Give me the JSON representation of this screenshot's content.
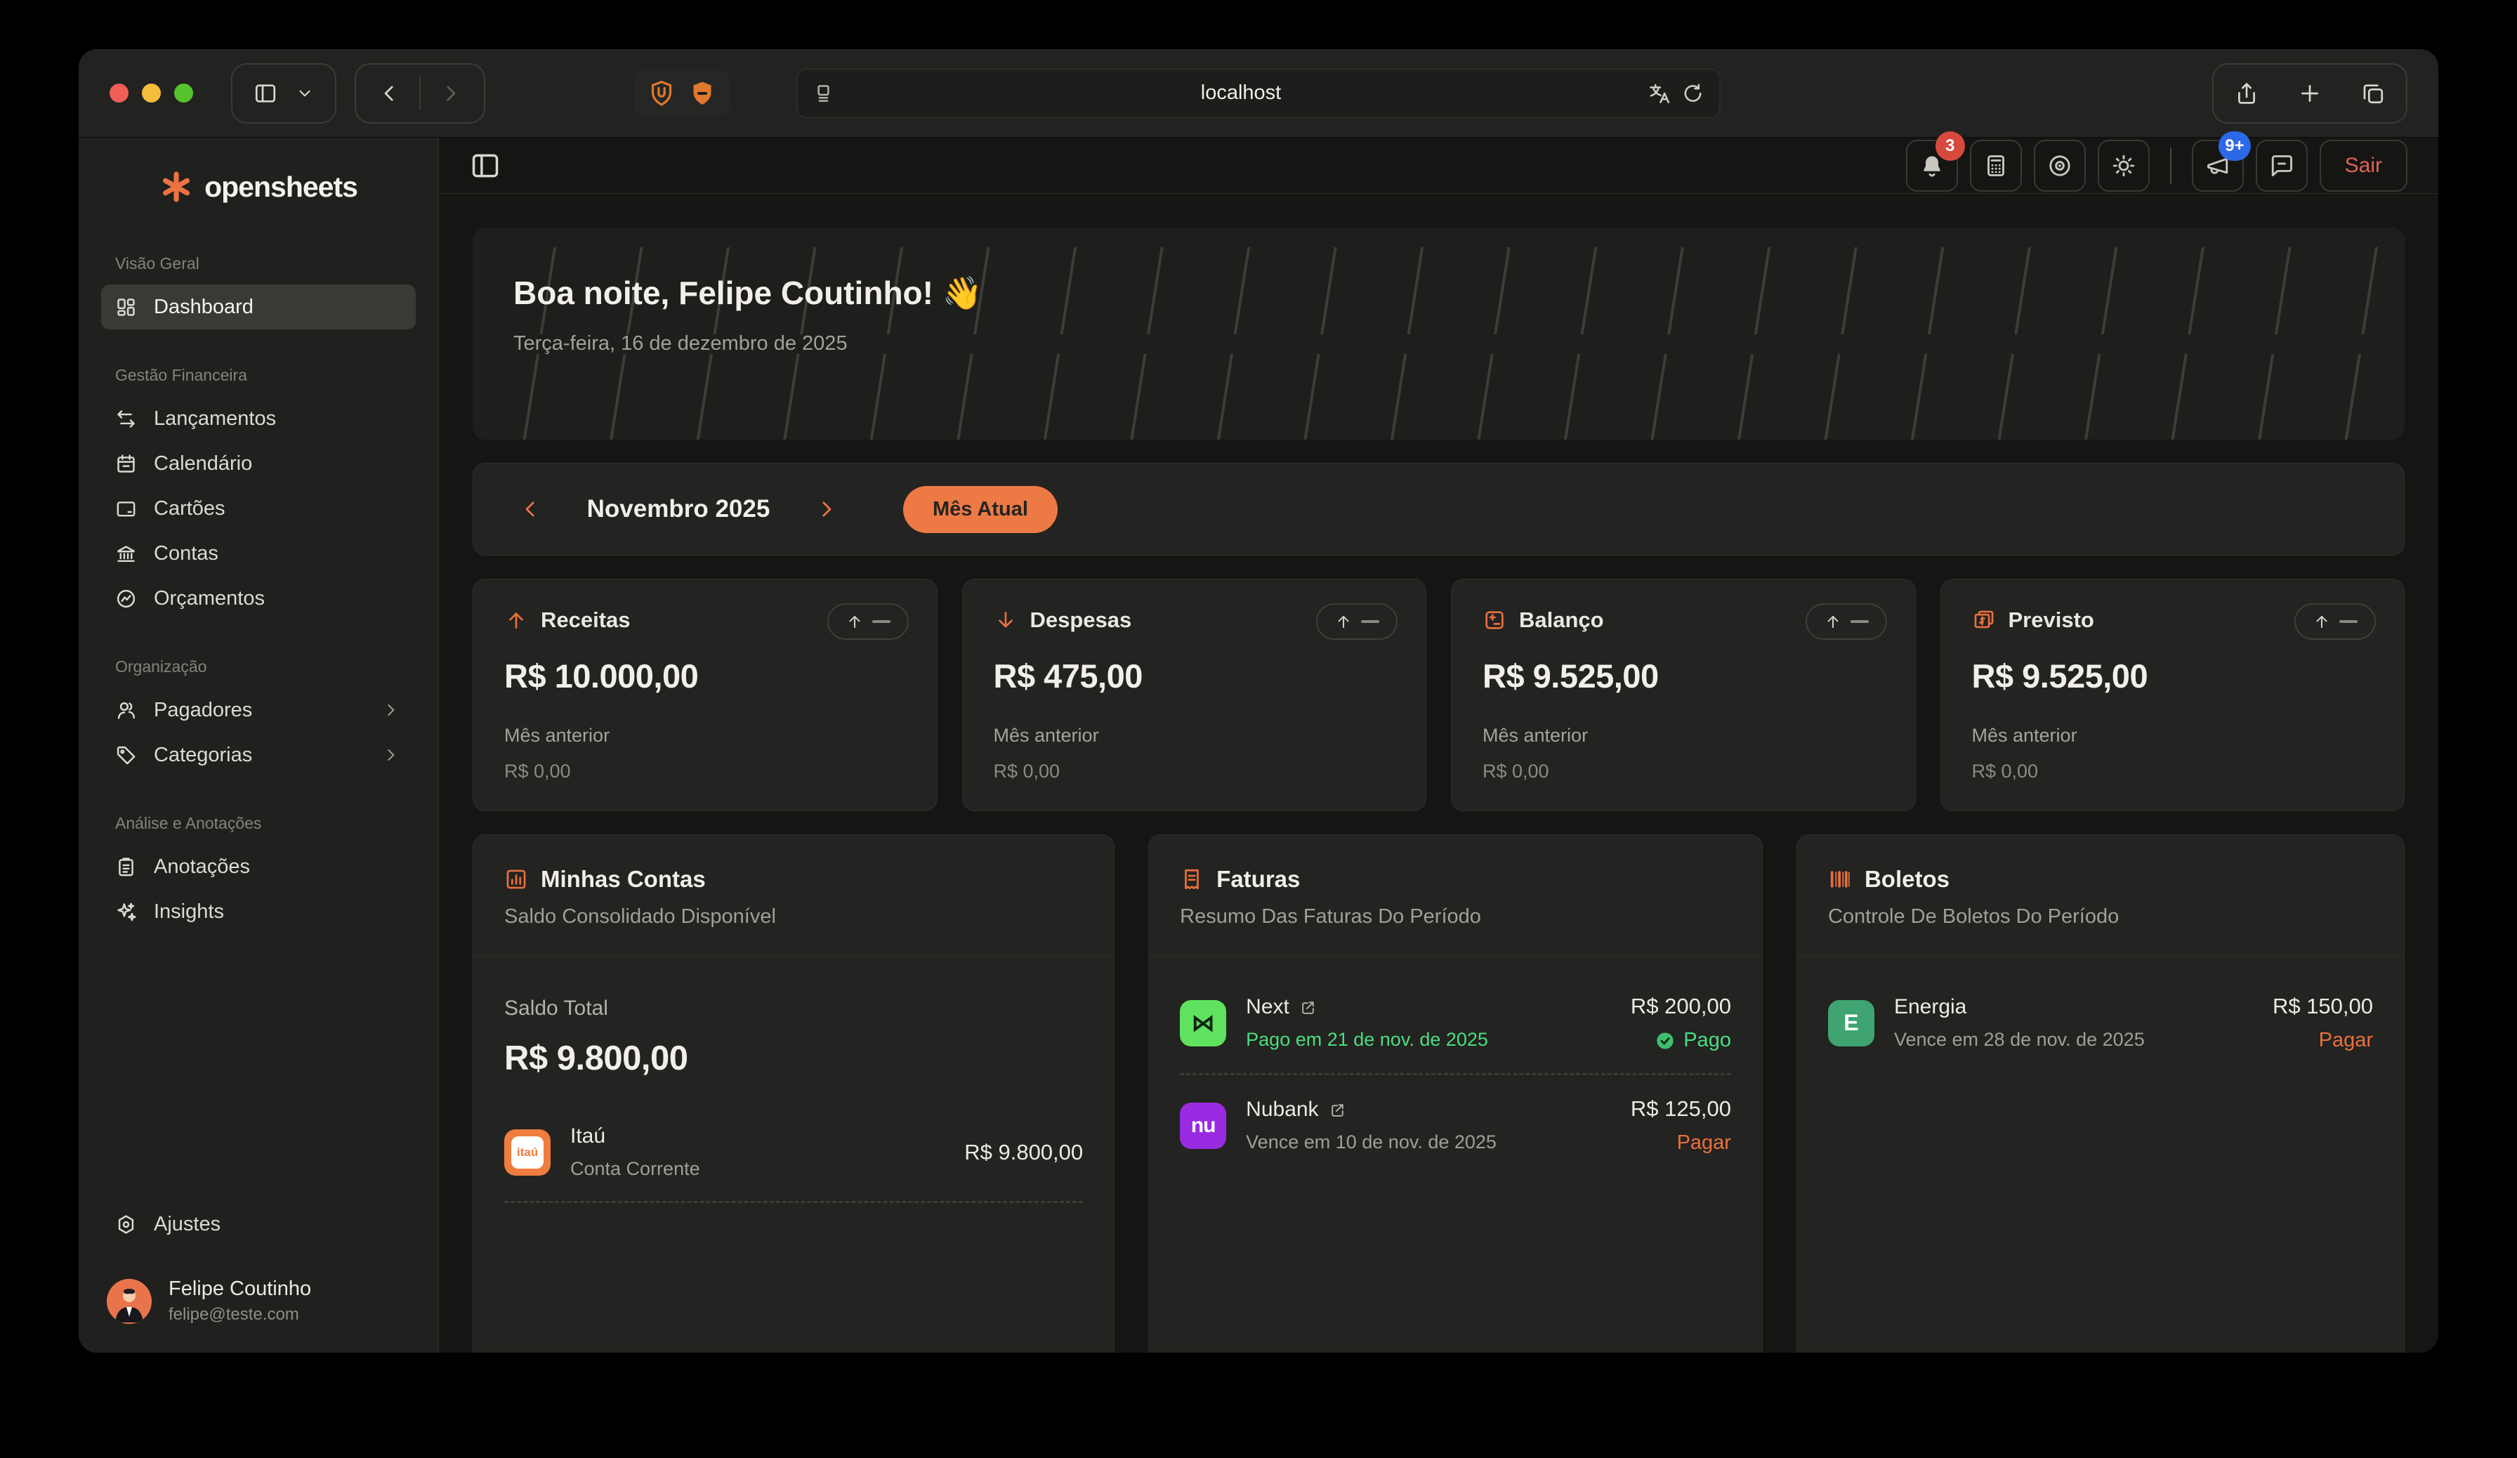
{
  "browser": {
    "url": "localhost"
  },
  "appheader": {
    "notifications_badge": "3",
    "announcements_badge": "9+",
    "logout_label": "Sair"
  },
  "sidebar": {
    "brand": "opensheets",
    "sections": [
      {
        "label": "Visão Geral",
        "items": [
          {
            "label": "Dashboard"
          }
        ]
      },
      {
        "label": "Gestão Financeira",
        "items": [
          {
            "label": "Lançamentos"
          },
          {
            "label": "Calendário"
          },
          {
            "label": "Cartões"
          },
          {
            "label": "Contas"
          },
          {
            "label": "Orçamentos"
          }
        ]
      },
      {
        "label": "Organização",
        "items": [
          {
            "label": "Pagadores"
          },
          {
            "label": "Categorias"
          }
        ]
      },
      {
        "label": "Análise e Anotações",
        "items": [
          {
            "label": "Anotações"
          },
          {
            "label": "Insights"
          }
        ]
      }
    ],
    "settings_label": "Ajustes",
    "user": {
      "name": "Felipe Coutinho",
      "email": "felipe@teste.com"
    }
  },
  "greeting": {
    "title": "Boa noite, Felipe Coutinho! 👋",
    "date": "Terça-feira, 16 de dezembro de 2025"
  },
  "month_selector": {
    "month": "Novembro 2025",
    "current_month_label": "Mês Atual"
  },
  "stats": [
    {
      "title": "Receitas",
      "value": "R$ 10.000,00",
      "previous_label": "Mês anterior",
      "previous_value": "R$ 0,00"
    },
    {
      "title": "Despesas",
      "value": "R$ 475,00",
      "previous_label": "Mês anterior",
      "previous_value": "R$ 0,00"
    },
    {
      "title": "Balanço",
      "value": "R$ 9.525,00",
      "previous_label": "Mês anterior",
      "previous_value": "R$ 0,00"
    },
    {
      "title": "Previsto",
      "value": "R$ 9.525,00",
      "previous_label": "Mês anterior",
      "previous_value": "R$ 0,00"
    }
  ],
  "accounts_card": {
    "title": "Minhas Contas",
    "subtitle": "Saldo Consolidado Disponível",
    "total_label": "Saldo Total",
    "total_value": "R$ 9.800,00",
    "accounts": [
      {
        "name": "Itaú",
        "logo_text": "itaú",
        "type": "Conta Corrente",
        "amount": "R$ 9.800,00"
      }
    ]
  },
  "invoices_card": {
    "title": "Faturas",
    "subtitle": "Resumo Das Faturas Do Período",
    "items": [
      {
        "name": "Next",
        "logo_text": "⋈",
        "status_line": "Pago em 21 de nov. de 2025",
        "amount": "R$ 200,00",
        "action": "Pago"
      },
      {
        "name": "Nubank",
        "logo_text": "nu",
        "status_line": "Vence em 10 de nov. de 2025",
        "amount": "R$ 125,00",
        "action": "Pagar"
      }
    ]
  },
  "boletos_card": {
    "title": "Boletos",
    "subtitle": "Controle De Boletos Do Período",
    "items": [
      {
        "name": "Energia",
        "logo_text": "E",
        "status_line": "Vence em 28 de nov. de 2025",
        "amount": "R$ 150,00",
        "action": "Pagar"
      }
    ]
  },
  "colors": {
    "accent_orange": "#ed7a45",
    "paid_green": "#4ade80",
    "logout_red": "#dd6450",
    "badge_red": "#d6493e",
    "badge_blue": "#2d68e8",
    "next_green": "#5fe25f",
    "nubank_purple": "#992be2",
    "energia_green": "#3fa472",
    "itau_orange": "#ee7d3e"
  }
}
